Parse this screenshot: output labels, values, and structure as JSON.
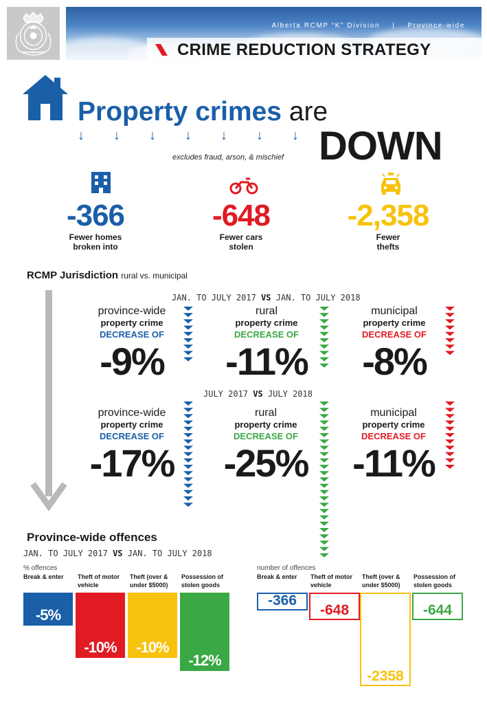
{
  "header": {
    "org": "Alberta RCMP “K” Division",
    "separator": "|",
    "scope": "Province-wide",
    "title": "CRIME REDUCTION STRATEGY"
  },
  "hero": {
    "title_strong": "Property crimes",
    "title_tail": "are",
    "down_word": "DOWN",
    "excludes_note": "excludes fraud, arson, & mischief",
    "arrow_glyph": "↓"
  },
  "stats": [
    {
      "value": "-366",
      "label_line1": "Fewer homes",
      "label_line2": "broken into",
      "color": "#1a5fa8",
      "icon": "building-icon"
    },
    {
      "value": "-648",
      "label_line1": "Fewer cars",
      "label_line2": "stolen",
      "color": "#e11b22",
      "icon": "motorcycle-icon"
    },
    {
      "value": "-2,358",
      "label_line1": "Fewer",
      "label_line2": "thefts",
      "color": "#f7c20d",
      "icon": "car-icon"
    }
  ],
  "jurisdiction": {
    "title": "RCMP Jurisdiction",
    "subtitle": "rural vs. municipal"
  },
  "periods": [
    {
      "left": "JAN. TO JULY 2017",
      "vs": "VS",
      "right": "JAN. TO JULY 2018",
      "cells": [
        {
          "line1": "province-wide",
          "line2": "property crime",
          "line3": "DECREASE OF",
          "value": "-9%",
          "color": "#1a5fa8"
        },
        {
          "line1": "rural",
          "line2": "property crime",
          "line3": "DECREASE OF",
          "value": "-11%",
          "color": "#3aa845"
        },
        {
          "line1": "municipal",
          "line2": "property crime",
          "line3": "DECREASE OF",
          "value": "-8%",
          "color": "#e11b22"
        }
      ]
    },
    {
      "left": "JULY 2017",
      "vs": "VS",
      "right": "JULY 2018",
      "cells": [
        {
          "line1": "province-wide",
          "line2": "property crime",
          "line3": "DECREASE OF",
          "value": "-17%",
          "color": "#1a5fa8"
        },
        {
          "line1": "rural",
          "line2": "property crime",
          "line3": "DECREASE OF",
          "value": "-25%",
          "color": "#3aa845"
        },
        {
          "line1": "municipal",
          "line2": "property crime",
          "line3": "DECREASE OF",
          "value": "-11%",
          "color": "#e11b22"
        }
      ]
    }
  ],
  "offences": {
    "title": "Province-wide offences",
    "period_left": "JAN. TO JULY 2017",
    "period_vs": "VS",
    "period_right": "JAN. TO JULY 2018",
    "pct_note": "% offences",
    "num_note": "number of offences",
    "categories": [
      {
        "line1": "Break & enter",
        "line2": "",
        "pct": "-5%",
        "pct_value": -5,
        "num": "-366",
        "num_value": -366,
        "color": "#1a5fa8"
      },
      {
        "line1": "Theft of motor",
        "line2": "vehicle",
        "pct": "-10%",
        "pct_value": -10,
        "num": "-648",
        "num_value": -648,
        "color": "#e11b22"
      },
      {
        "line1": "Theft (over &",
        "line2": "under $5000)",
        "pct": "-10%",
        "pct_value": -10,
        "num": "-2358",
        "num_value": -2358,
        "color": "#f7c20d"
      },
      {
        "line1": "Possession of",
        "line2": "stolen goods",
        "pct": "-12%",
        "pct_value": -12,
        "num": "-644",
        "num_value": -644,
        "color": "#3aa845"
      }
    ]
  }
}
